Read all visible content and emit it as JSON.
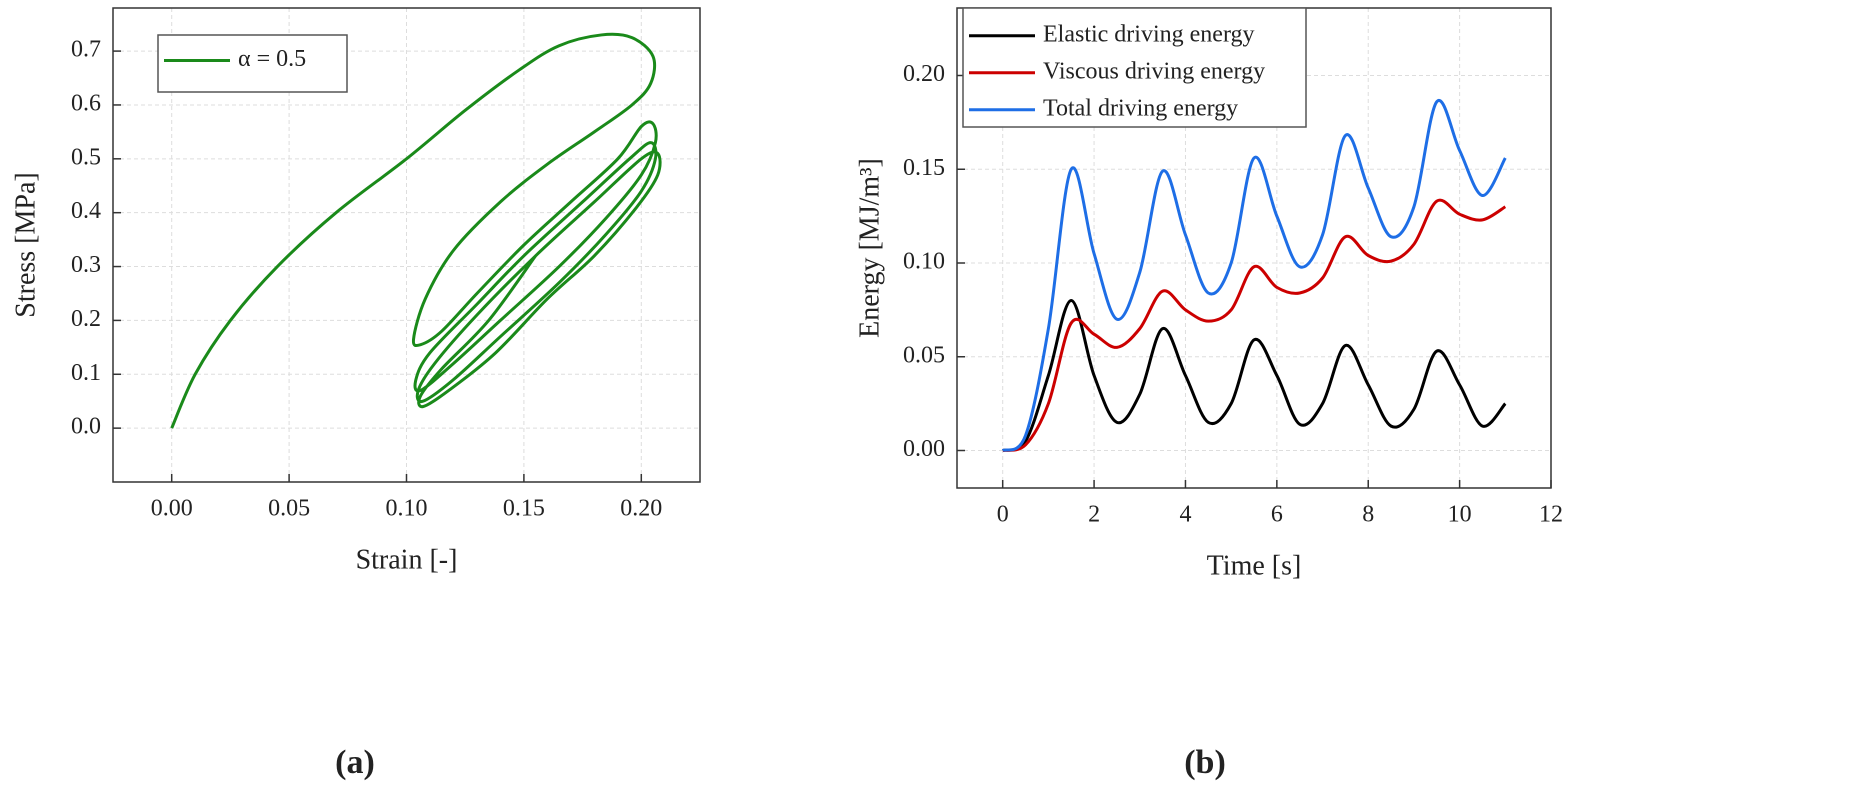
{
  "chart_data": [
    {
      "type": "line",
      "panel_label": "(a)",
      "x_label": "Strain [-]",
      "y_label": "Stress [MPa]",
      "xlim": [
        -0.025,
        0.225
      ],
      "ylim": [
        -0.1,
        0.78
      ],
      "xticks": [
        {
          "value": 0,
          "label": "0.00"
        },
        0.05,
        {
          "value": 0.1,
          "label": "0.10"
        },
        0.15,
        {
          "value": 0.2,
          "label": "0.20"
        }
      ],
      "yticks": [
        {
          "value": 0,
          "label": "0.0"
        },
        0.1,
        0.2,
        0.3,
        0.4,
        0.5,
        0.6,
        0.7
      ],
      "grid": true,
      "legend": "upper left",
      "x": [
        0,
        0.01,
        0.025,
        0.045,
        0.07,
        0.1,
        0.125,
        0.148,
        0.165,
        0.183,
        0.196,
        0.205,
        0.204,
        0.196,
        0.18,
        0.16,
        0.14,
        0.12,
        0.108,
        0.103,
        0.106,
        0.115,
        0.13,
        0.15,
        0.17,
        0.19,
        0.2,
        0.205,
        0.206,
        0.2,
        0.185,
        0.165,
        0.14,
        0.12,
        0.106,
        0.104,
        0.11,
        0.13,
        0.15,
        0.175,
        0.195,
        0.204,
        0.206,
        0.2,
        0.185,
        0.165,
        0.14,
        0.12,
        0.107,
        0.105,
        0.112,
        0.13,
        0.155,
        0.18,
        0.2,
        0.207,
        0.207,
        0.198,
        0.18,
        0.16,
        0.138,
        0.118,
        0.107,
        0.106,
        0.115,
        0.135,
        0.155
      ],
      "series": [
        {
          "name": "α = 0.5",
          "color": "#1a8a1a",
          "values": [
            0,
            0.1,
            0.2,
            0.3,
            0.4,
            0.5,
            0.59,
            0.665,
            0.71,
            0.73,
            0.725,
            0.69,
            0.64,
            0.6,
            0.55,
            0.49,
            0.42,
            0.33,
            0.24,
            0.165,
            0.155,
            0.18,
            0.25,
            0.34,
            0.42,
            0.5,
            0.56,
            0.565,
            0.53,
            0.47,
            0.39,
            0.3,
            0.2,
            0.12,
            0.07,
            0.09,
            0.14,
            0.23,
            0.32,
            0.42,
            0.5,
            0.53,
            0.5,
            0.44,
            0.36,
            0.27,
            0.17,
            0.09,
            0.05,
            0.07,
            0.12,
            0.21,
            0.32,
            0.42,
            0.5,
            0.51,
            0.47,
            0.41,
            0.32,
            0.24,
            0.14,
            0.07,
            0.04,
            0.06,
            0.11,
            0.2,
            0.32
          ]
        }
      ]
    },
    {
      "type": "line",
      "panel_label": "(b)",
      "x_label": "Time [s]",
      "y_label": "Energy [MJ/m³]",
      "xlim": [
        -1,
        12
      ],
      "ylim": [
        -0.02,
        0.236
      ],
      "xticks": [
        0,
        2,
        4,
        6,
        8,
        10,
        12
      ],
      "yticks": [
        {
          "value": 0,
          "label": "0.00"
        },
        0.05,
        {
          "value": 0.1,
          "label": "0.10"
        },
        0.15,
        {
          "value": 0.2,
          "label": "0.20"
        }
      ],
      "grid": true,
      "legend": "upper left",
      "x": [
        0,
        0.5,
        1,
        1.5,
        2,
        2.5,
        3,
        3.5,
        4,
        4.5,
        5,
        5.5,
        6,
        6.5,
        7,
        7.5,
        8,
        8.5,
        9,
        9.5,
        10,
        10.5,
        11
      ],
      "series": [
        {
          "name": "Elastic driving energy",
          "color": "#000000",
          "values": [
            0,
            0.005,
            0.04,
            0.08,
            0.04,
            0.015,
            0.03,
            0.065,
            0.04,
            0.015,
            0.025,
            0.059,
            0.04,
            0.014,
            0.025,
            0.056,
            0.035,
            0.013,
            0.022,
            0.053,
            0.035,
            0.013,
            0.025
          ]
        },
        {
          "name": "Viscous  driving energy",
          "color": "#cc0000",
          "values": [
            0,
            0.003,
            0.025,
            0.068,
            0.062,
            0.055,
            0.065,
            0.085,
            0.075,
            0.069,
            0.075,
            0.098,
            0.087,
            0.084,
            0.092,
            0.114,
            0.104,
            0.101,
            0.11,
            0.133,
            0.126,
            0.123,
            0.13
          ]
        },
        {
          "name": "Total  driving energy",
          "color": "#1e6ee6",
          "values": [
            0,
            0.008,
            0.065,
            0.15,
            0.105,
            0.07,
            0.095,
            0.149,
            0.115,
            0.084,
            0.1,
            0.156,
            0.125,
            0.098,
            0.115,
            0.168,
            0.14,
            0.114,
            0.13,
            0.186,
            0.16,
            0.136,
            0.156
          ]
        }
      ]
    }
  ]
}
